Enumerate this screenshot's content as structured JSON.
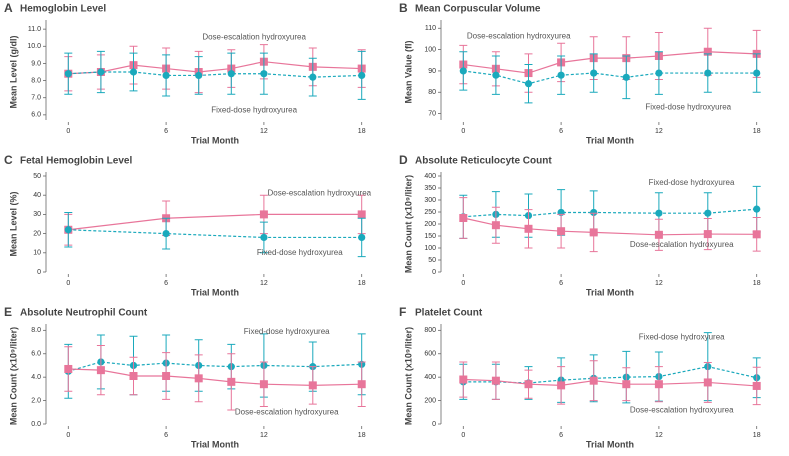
{
  "chart_data": [
    {
      "type": "line",
      "label": "A",
      "title": "Hemoglobin Level",
      "ylabel": "Mean Level (g/dl)",
      "xlabel": "Trial Month",
      "x": [
        0,
        2,
        4,
        6,
        8,
        10,
        12,
        15,
        18
      ],
      "xlim": [
        -1,
        19
      ],
      "xticks": [
        0,
        6,
        12,
        18
      ],
      "ylim": [
        5.7,
        11.3
      ],
      "yticks": [
        {
          "value": 6,
          "label": "6.0"
        },
        {
          "value": 7,
          "label": "7.0"
        },
        {
          "value": 8,
          "label": "8.0"
        },
        {
          "value": 9,
          "label": "9.0"
        },
        {
          "value": 10,
          "label": "10.0"
        },
        {
          "value": 11,
          "label": "11.0"
        }
      ],
      "series": [
        {
          "name": "Dose-escalation hydroxyurea",
          "color": "#e8759a",
          "marker": "square",
          "line_style": "solid",
          "values": [
            8.4,
            8.5,
            8.9,
            8.7,
            8.5,
            8.7,
            9.1,
            8.8,
            8.7
          ],
          "errors": [
            1.0,
            1.0,
            1.1,
            1.2,
            1.2,
            1.1,
            1.0,
            1.1,
            1.1
          ]
        },
        {
          "name": "Fixed-dose hydroxyurea",
          "color": "#1aa9bc",
          "marker": "circle",
          "line_style": "dashed",
          "values": [
            8.4,
            8.5,
            8.5,
            8.3,
            8.3,
            8.4,
            8.4,
            8.2,
            8.3
          ],
          "errors": [
            1.2,
            1.2,
            1.1,
            1.2,
            1.1,
            1.2,
            1.2,
            1.1,
            1.4
          ]
        }
      ]
    },
    {
      "type": "line",
      "label": "B",
      "title": "Mean Corpuscular Volume",
      "ylabel": "Mean Value (fl)",
      "xlabel": "Trial Month",
      "x": [
        0,
        2,
        4,
        6,
        8,
        10,
        12,
        15,
        18
      ],
      "xlim": [
        -1,
        19
      ],
      "xticks": [
        0,
        6,
        12,
        18
      ],
      "ylim": [
        67,
        112
      ],
      "yticks": [
        70,
        80,
        90,
        100,
        110
      ],
      "series": [
        {
          "name": "Dose-escalation hydroxyurea",
          "color": "#e8759a",
          "marker": "square",
          "line_style": "solid",
          "values": [
            93,
            91,
            89,
            94,
            96,
            96,
            97,
            99,
            98
          ],
          "errors": [
            9,
            8,
            9,
            9,
            10,
            10,
            11,
            11,
            11
          ]
        },
        {
          "name": "Fixed-dose hydroxyurea",
          "color": "#1aa9bc",
          "marker": "circle",
          "line_style": "dashed",
          "values": [
            90,
            88,
            84,
            88,
            89,
            87,
            89,
            89,
            89
          ],
          "errors": [
            9,
            9,
            9,
            9,
            9,
            10,
            10,
            9,
            9
          ]
        }
      ]
    },
    {
      "type": "line",
      "label": "C",
      "title": "Fetal Hemoglobin Level",
      "ylabel": "Mean Level (%)",
      "xlabel": "Trial Month",
      "x": [
        0,
        6,
        12,
        18
      ],
      "xlim": [
        -1,
        19
      ],
      "xticks": [
        0,
        6,
        12,
        18
      ],
      "ylim": [
        0,
        50
      ],
      "yticks": [
        0,
        10,
        20,
        30,
        40,
        50
      ],
      "series": [
        {
          "name": "Dose-escalation hydroxyurea",
          "color": "#e8759a",
          "marker": "square",
          "line_style": "solid",
          "values": [
            22,
            28,
            30,
            30
          ],
          "errors": [
            8,
            9,
            10,
            10
          ]
        },
        {
          "name": "Fixed-dose hydroxyurea",
          "color": "#1aa9bc",
          "marker": "circle",
          "line_style": "dashed",
          "values": [
            22,
            20,
            18,
            18
          ],
          "errors": [
            9,
            8,
            8,
            10
          ]
        }
      ]
    },
    {
      "type": "line",
      "label": "D",
      "title": "Absolute Reticulocyte Count",
      "ylabel": "Mean Count (x10⁹/liter)",
      "xlabel": "Trial Month",
      "x": [
        0,
        2,
        4,
        6,
        8,
        12,
        15,
        18
      ],
      "xlim": [
        -1,
        19
      ],
      "xticks": [
        0,
        6,
        12,
        18
      ],
      "ylim": [
        0,
        400
      ],
      "yticks": [
        0,
        50,
        100,
        150,
        200,
        250,
        300,
        350,
        400
      ],
      "series": [
        {
          "name": "Fixed-dose hydroxyurea",
          "color": "#1aa9bc",
          "marker": "circle",
          "line_style": "dashed",
          "values": [
            230,
            240,
            235,
            248,
            248,
            245,
            245,
            262
          ],
          "errors": [
            90,
            95,
            90,
            95,
            90,
            85,
            85,
            95
          ]
        },
        {
          "name": "Dose-escalation hydroxyurea",
          "color": "#e8759a",
          "marker": "square",
          "line_style": "solid",
          "values": [
            225,
            195,
            180,
            170,
            165,
            155,
            158,
            157
          ],
          "errors": [
            85,
            75,
            80,
            70,
            80,
            65,
            65,
            70
          ]
        }
      ]
    },
    {
      "type": "line",
      "label": "E",
      "title": "Absolute Neutrophil Count",
      "ylabel": "Mean Count (x10⁹/liter)",
      "xlabel": "Trial Month",
      "x": [
        0,
        2,
        4,
        6,
        8,
        10,
        12,
        15,
        18
      ],
      "xlim": [
        -1,
        19
      ],
      "xticks": [
        0,
        6,
        12,
        18
      ],
      "ylim": [
        0,
        8.2
      ],
      "yticks": [
        {
          "value": 0,
          "label": "0.0"
        },
        {
          "value": 2,
          "label": "2.0"
        },
        {
          "value": 4,
          "label": "4.0"
        },
        {
          "value": 6,
          "label": "6.0"
        },
        {
          "value": 8,
          "label": "8.0"
        }
      ],
      "series": [
        {
          "name": "Fixed-dose hydroxyurea",
          "color": "#1aa9bc",
          "marker": "circle",
          "line_style": "dashed",
          "values": [
            4.5,
            5.3,
            5.0,
            5.2,
            5.0,
            4.9,
            5.0,
            4.9,
            5.1
          ],
          "errors": [
            2.3,
            2.3,
            2.5,
            2.4,
            2.2,
            1.9,
            2.7,
            2.1,
            2.6
          ]
        },
        {
          "name": "Dose-escalation hydroxyurea",
          "color": "#e8759a",
          "marker": "square",
          "line_style": "solid",
          "values": [
            4.7,
            4.6,
            4.1,
            4.1,
            3.9,
            3.6,
            3.4,
            3.3,
            3.4
          ],
          "errors": [
            1.9,
            2.1,
            1.6,
            2.0,
            2.0,
            2.4,
            1.9,
            1.6,
            1.9
          ]
        }
      ]
    },
    {
      "type": "line",
      "label": "F",
      "title": "Platelet Count",
      "ylabel": "Mean Count (x10⁹/liter)",
      "xlabel": "Trial Month",
      "x": [
        0,
        2,
        4,
        6,
        8,
        10,
        12,
        15,
        18
      ],
      "xlim": [
        -1,
        19
      ],
      "xticks": [
        0,
        6,
        12,
        18
      ],
      "ylim": [
        0,
        820
      ],
      "yticks": [
        0,
        200,
        400,
        600,
        800
      ],
      "series": [
        {
          "name": "Fixed-dose hydroxyurea",
          "color": "#1aa9bc",
          "marker": "circle",
          "line_style": "dashed",
          "values": [
            360,
            360,
            350,
            375,
            390,
            400,
            405,
            490,
            395
          ],
          "errors": [
            150,
            150,
            140,
            190,
            200,
            220,
            210,
            290,
            170
          ]
        },
        {
          "name": "Dose-escalation hydroxyurea",
          "color": "#e8759a",
          "marker": "square",
          "line_style": "solid",
          "values": [
            380,
            370,
            340,
            330,
            370,
            340,
            340,
            355,
            325
          ],
          "errors": [
            150,
            160,
            120,
            160,
            170,
            140,
            150,
            170,
            160
          ]
        }
      ]
    }
  ]
}
